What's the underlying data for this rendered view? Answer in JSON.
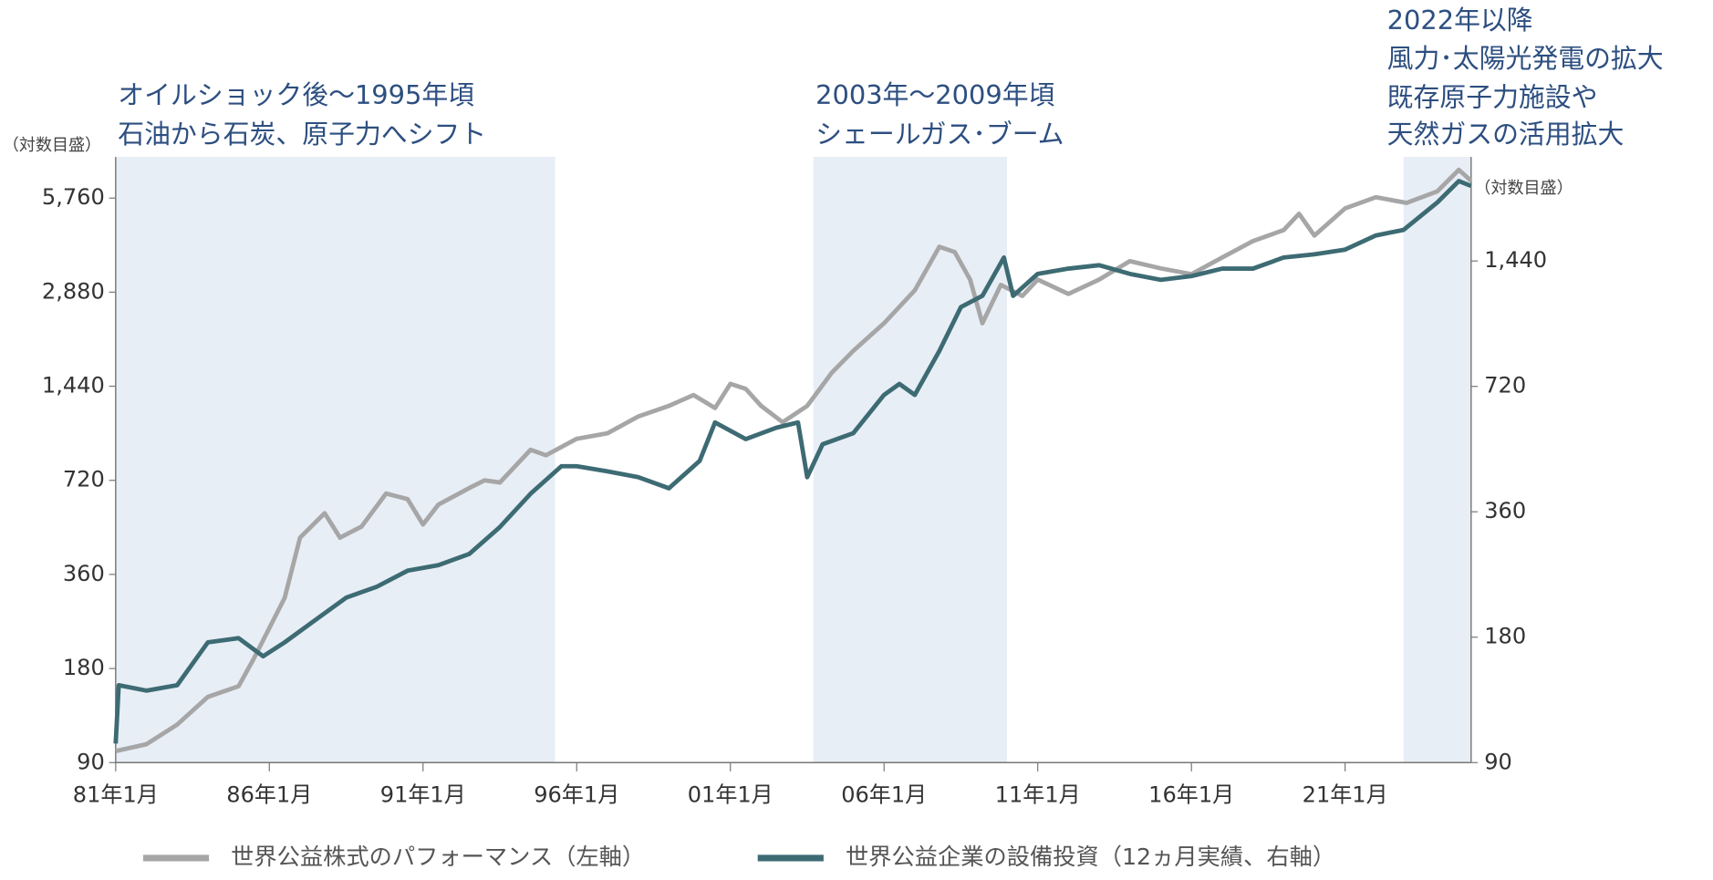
{
  "chart_data": {
    "type": "line",
    "y_label": "（対数目盛）",
    "y2_label": "（対数目盛）",
    "log_scale": true,
    "xlim": [
      1981,
      2025.1
    ],
    "xticks": [
      {
        "value": 1981,
        "label": "81年1月"
      },
      {
        "value": 1986,
        "label": "86年1月"
      },
      {
        "value": 1991,
        "label": "91年1月"
      },
      {
        "value": 1996,
        "label": "96年1月"
      },
      {
        "value": 2001,
        "label": "01年1月"
      },
      {
        "value": 2006,
        "label": "06年1月"
      },
      {
        "value": 2011,
        "label": "11年1月"
      },
      {
        "value": 2016,
        "label": "16年1月"
      },
      {
        "value": 2021,
        "label": "21年1月"
      }
    ],
    "ylim": [
      90,
      7800
    ],
    "yticks": [
      90,
      180,
      360,
      720,
      {
        "value": 1440,
        "label": "1,440"
      },
      {
        "value": 2880,
        "label": "2,880"
      },
      {
        "value": 5760,
        "label": "5,760"
      }
    ],
    "y2lim": [
      90,
      2560
    ],
    "y2ticks": [
      90,
      180,
      360,
      720,
      {
        "value": 1440,
        "label": "1,440"
      }
    ],
    "annotations": [
      {
        "x": [
          1981,
          1995.3
        ],
        "color": "#e8eef6",
        "lines": [
          "オイルショック後～1995年頃",
          "石油から石炭、原子力へシフト"
        ]
      },
      {
        "x": [
          2003.7,
          2010.0
        ],
        "color": "#e8eef6",
        "lines": [
          "2003年～2009年頃",
          "シェールガス･ブーム"
        ]
      },
      {
        "x": [
          2022.9,
          2025.1
        ],
        "color": "#e8eef6",
        "lines": [
          "2022年以降",
          "風力･太陽光発電の拡大",
          "既存原子力施設や",
          "天然ガスの活用拡大"
        ]
      }
    ],
    "series": [
      {
        "name": "世界公益株式のパフォーマンス（左軸）",
        "color": "#a6a6a6",
        "axis": "y",
        "x": [
          1981.0,
          1982.0,
          1983.0,
          1984.0,
          1985.0,
          1985.5,
          1986.5,
          1987.0,
          1987.8,
          1988.3,
          1989.0,
          1989.8,
          1990.5,
          1991.0,
          1991.5,
          1992.5,
          1993.0,
          1993.5,
          1994.5,
          1995.0,
          1996.0,
          1997.0,
          1998.0,
          1999.0,
          1999.8,
          2000.5,
          2001.0,
          2001.5,
          2002.0,
          2002.7,
          2003.5,
          2004.3,
          2005.0,
          2006.0,
          2007.0,
          2007.8,
          2008.3,
          2008.8,
          2009.2,
          2009.8,
          2010.5,
          2011.0,
          2012.0,
          2013.0,
          2014.0,
          2015.0,
          2016.0,
          2017.0,
          2018.0,
          2019.0,
          2019.5,
          2020.0,
          2021.0,
          2022.0,
          2023.0,
          2024.0,
          2024.7,
          2025.1
        ],
        "values": [
          98,
          103,
          119,
          146,
          158,
          194,
          303,
          472,
          565,
          472,
          512,
          653,
          627,
          520,
          602,
          680,
          720,
          709,
          902,
          866,
          978,
          1018,
          1152,
          1246,
          1350,
          1226,
          1466,
          1412,
          1246,
          1105,
          1246,
          1590,
          1870,
          2290,
          2918,
          4022,
          3870,
          3160,
          2290,
          3040,
          2800,
          3160,
          2843,
          3160,
          3620,
          3430,
          3290,
          3718,
          4195,
          4550,
          5130,
          4370,
          5340,
          5800,
          5560,
          6050,
          7090,
          6540
        ]
      },
      {
        "name": "世界公益企業の設備投資（12ヵ月実績、右軸）",
        "color": "#3d6b73",
        "axis": "y2",
        "x": [
          1981.0,
          1981.1,
          1982.0,
          1983.0,
          1984.0,
          1985.0,
          1985.8,
          1986.5,
          1987.5,
          1988.5,
          1989.5,
          1990.5,
          1991.5,
          1992.5,
          1993.5,
          1994.5,
          1995.5,
          1996.0,
          1997.0,
          1998.0,
          1999.0,
          2000.0,
          2000.5,
          2001.5,
          2002.5,
          2003.2,
          2003.5,
          2004.0,
          2005.0,
          2006.0,
          2006.5,
          2007.0,
          2007.8,
          2008.5,
          2009.2,
          2009.9,
          2010.2,
          2011.0,
          2012.0,
          2013.0,
          2014.0,
          2015.0,
          2016.0,
          2017.0,
          2018.0,
          2019.0,
          2020.0,
          2021.0,
          2022.0,
          2022.9,
          2024.0,
          2024.7,
          2025.1
        ],
        "values": [
          100,
          138,
          134,
          138,
          175,
          179,
          162,
          175,
          198,
          224,
          238,
          260,
          268,
          285,
          331,
          398,
          463,
          463,
          450,
          436,
          410,
          477,
          590,
          538,
          573,
          590,
          436,
          523,
          556,
          687,
          730,
          687,
          876,
          1116,
          1188,
          1468,
          1188,
          1341,
          1381,
          1407,
          1341,
          1298,
          1325,
          1381,
          1381,
          1468,
          1494,
          1533,
          1658,
          1710,
          1990,
          2240,
          2180
        ]
      }
    ]
  }
}
